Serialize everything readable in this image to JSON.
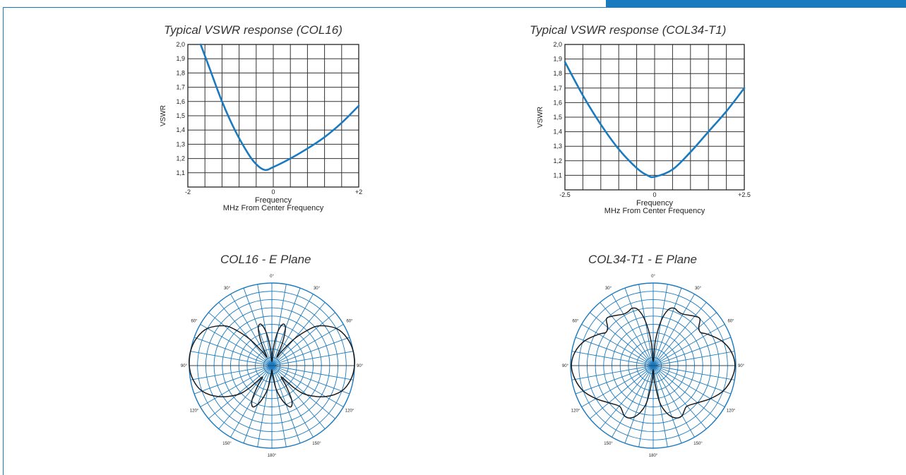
{
  "chart_data": [
    {
      "type": "line",
      "title": "Typical VSWR response (COL16)",
      "xlabel": "Frequency",
      "xlabel2": "MHz From Center Frequency",
      "ylabel": "VSWR",
      "xlim": [
        -2,
        2
      ],
      "ylim": [
        1.0,
        2.0
      ],
      "x_ticks": [
        "-2",
        "0",
        "+2"
      ],
      "y_ticks": [
        "2,0",
        "1,9",
        "1,8",
        "1,7",
        "1,6",
        "1,5",
        "1,4",
        "1,3",
        "1,2",
        "1,1"
      ],
      "grid": true,
      "color": "#1a7ac0",
      "x": [
        -1.7,
        -1.5,
        -1.2,
        -0.9,
        -0.6,
        -0.4,
        -0.2,
        0.0,
        0.4,
        0.8,
        1.2,
        1.6,
        2.0
      ],
      "y": [
        2.0,
        1.84,
        1.6,
        1.4,
        1.24,
        1.16,
        1.12,
        1.14,
        1.2,
        1.27,
        1.35,
        1.45,
        1.57
      ]
    },
    {
      "type": "line",
      "title": "Typical VSWR response (COL34-T1)",
      "xlabel": "Frequency",
      "xlabel2": "MHz From Center Frequency",
      "ylabel": "VSWR",
      "xlim": [
        -2.5,
        2.5
      ],
      "ylim": [
        1.0,
        2.0
      ],
      "x_ticks": [
        "-2.5",
        "0",
        "+2.5"
      ],
      "y_ticks": [
        "2,0",
        "1,9",
        "1,8",
        "1,7",
        "1,6",
        "1,5",
        "1,4",
        "1,3",
        "1,2",
        "1,1"
      ],
      "grid": true,
      "color": "#1a7ac0",
      "x": [
        -2.5,
        -2.0,
        -1.5,
        -1.0,
        -0.5,
        -0.2,
        0.0,
        0.5,
        1.0,
        1.5,
        2.0,
        2.5
      ],
      "y": [
        1.88,
        1.65,
        1.45,
        1.28,
        1.15,
        1.1,
        1.09,
        1.14,
        1.26,
        1.4,
        1.54,
        1.7
      ]
    },
    {
      "type": "polar",
      "title": "COL16 - E Plane",
      "angle_labels": [
        {
          "deg": 0,
          "label": "0°"
        },
        {
          "deg": 30,
          "label": "30°"
        },
        {
          "deg": 60,
          "label": "60°"
        },
        {
          "deg": 90,
          "label": "90°"
        },
        {
          "deg": 120,
          "label": "120°"
        },
        {
          "deg": 150,
          "label": "150°"
        },
        {
          "deg": 180,
          "label": "180°"
        },
        {
          "deg": -150,
          "label": "150°"
        },
        {
          "deg": -120,
          "label": "120°"
        },
        {
          "deg": -90,
          "label": "90°"
        },
        {
          "deg": -60,
          "label": "60°"
        },
        {
          "deg": -30,
          "label": "30°"
        }
      ],
      "grid": true,
      "color": "#1a7ac0",
      "pattern_deg": [
        0,
        5,
        10,
        15,
        20,
        25,
        30,
        35,
        40,
        45,
        50,
        60,
        70,
        80,
        90,
        100,
        110,
        120,
        130,
        135,
        140,
        145,
        150,
        155,
        160,
        165,
        170,
        175,
        180
      ],
      "pattern_r": [
        0.05,
        0.22,
        0.42,
        0.52,
        0.48,
        0.3,
        0.12,
        0.22,
        0.42,
        0.6,
        0.75,
        0.9,
        0.97,
        1.0,
        1.0,
        0.97,
        0.9,
        0.75,
        0.55,
        0.38,
        0.18,
        0.3,
        0.48,
        0.55,
        0.5,
        0.4,
        0.28,
        0.12,
        0.05
      ]
    },
    {
      "type": "polar",
      "title": "COL34-T1 - E Plane",
      "angle_labels": [
        {
          "deg": 0,
          "label": "0°"
        },
        {
          "deg": 30,
          "label": "30°"
        },
        {
          "deg": 60,
          "label": "60°"
        },
        {
          "deg": 90,
          "label": "90°"
        },
        {
          "deg": 120,
          "label": "120°"
        },
        {
          "deg": 150,
          "label": "150°"
        },
        {
          "deg": 180,
          "label": "180°"
        },
        {
          "deg": -150,
          "label": "150°"
        },
        {
          "deg": -120,
          "label": "120°"
        },
        {
          "deg": -90,
          "label": "90°"
        },
        {
          "deg": -60,
          "label": "60°"
        },
        {
          "deg": -30,
          "label": "30°"
        }
      ],
      "grid": true,
      "color": "#1a7ac0",
      "pattern_deg": [
        0,
        5,
        10,
        15,
        20,
        25,
        30,
        40,
        45,
        50,
        55,
        60,
        70,
        80,
        90,
        100,
        110,
        120,
        130,
        140,
        145,
        150,
        155,
        160,
        165,
        170,
        175,
        180
      ],
      "pattern_r": [
        0.05,
        0.3,
        0.55,
        0.7,
        0.74,
        0.72,
        0.72,
        0.78,
        0.8,
        0.72,
        0.7,
        0.76,
        0.88,
        0.96,
        0.99,
        0.96,
        0.9,
        0.8,
        0.7,
        0.64,
        0.66,
        0.7,
        0.7,
        0.66,
        0.58,
        0.45,
        0.2,
        0.05
      ]
    }
  ]
}
